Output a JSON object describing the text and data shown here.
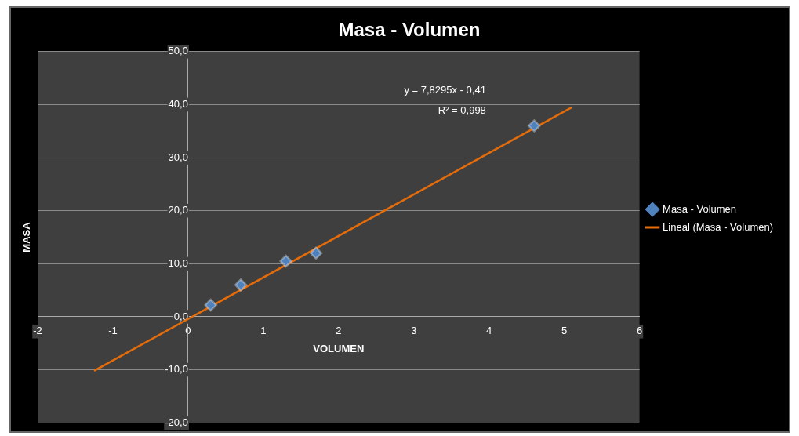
{
  "chart_data": {
    "type": "scatter",
    "title": "Masa - Volumen",
    "xlabel": "VOLUMEN",
    "ylabel": "MASA",
    "series": [
      {
        "name": "Masa - Volumen",
        "type": "scatter",
        "color": "#4f81bd",
        "x": [
          0.3,
          0.7,
          1.3,
          1.7,
          4.6
        ],
        "values": [
          2.2,
          6.0,
          10.5,
          12.0,
          36.0
        ],
        "marker": "diamond"
      },
      {
        "name": "Lineal (Masa - Volumen)",
        "type": "line",
        "color": "#e46c0a",
        "x": [
          -1.25,
          5.1
        ],
        "values": [
          -10.2,
          39.5
        ],
        "marker": "none",
        "line_style": "solid"
      }
    ],
    "xlim": [
      -2,
      6
    ],
    "xticks": [
      -2,
      -1,
      0,
      1,
      2,
      3,
      4,
      5,
      6
    ],
    "ylim": [
      -20,
      50
    ],
    "yticks": [
      {
        "value": -20,
        "label": "-20,0"
      },
      {
        "value": -10,
        "label": "-10,0"
      },
      {
        "value": 0,
        "label": "0,0"
      },
      {
        "value": 10,
        "label": "10,0"
      },
      {
        "value": 20,
        "label": "20,0"
      },
      {
        "value": 30,
        "label": "30,0"
      },
      {
        "value": 40,
        "label": "40,0"
      },
      {
        "value": 50,
        "label": "50,0"
      }
    ],
    "grid": "y",
    "legend": "right",
    "annotations": [
      "y = 7,8295x - 0,41",
      "R² = 0,998"
    ]
  }
}
